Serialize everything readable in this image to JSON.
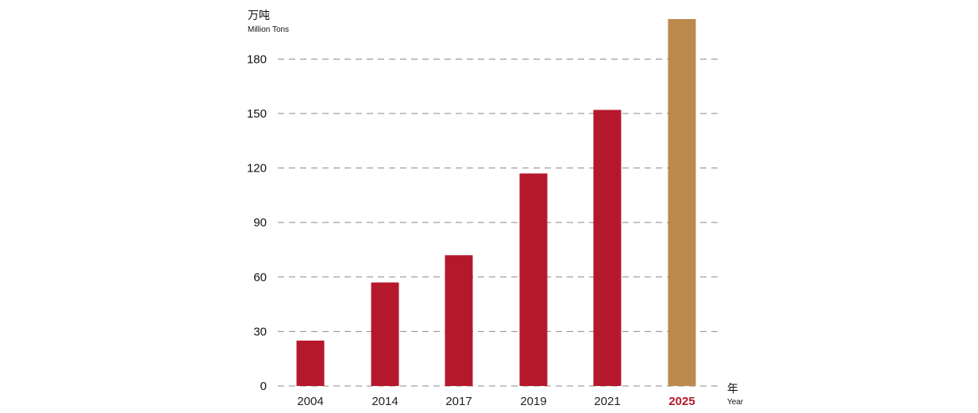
{
  "chart_data": {
    "type": "bar",
    "ylabel": "万吨",
    "ylabel_en": "Million Tons",
    "xlabel": "年",
    "xlabel_en": "Year",
    "categories": [
      "2004",
      "2014",
      "2017",
      "2019",
      "2021",
      "2025"
    ],
    "values": [
      25,
      57,
      72,
      117,
      152,
      202
    ],
    "highlight_category": "2025",
    "ylim": [
      0,
      202
    ],
    "yticks": [
      0,
      30,
      60,
      90,
      120,
      150,
      180
    ],
    "grid": true,
    "colors": {
      "bar": "#b5182c",
      "highlight_bar": "#bc8a4c",
      "highlight_label": "#b5182c"
    }
  }
}
